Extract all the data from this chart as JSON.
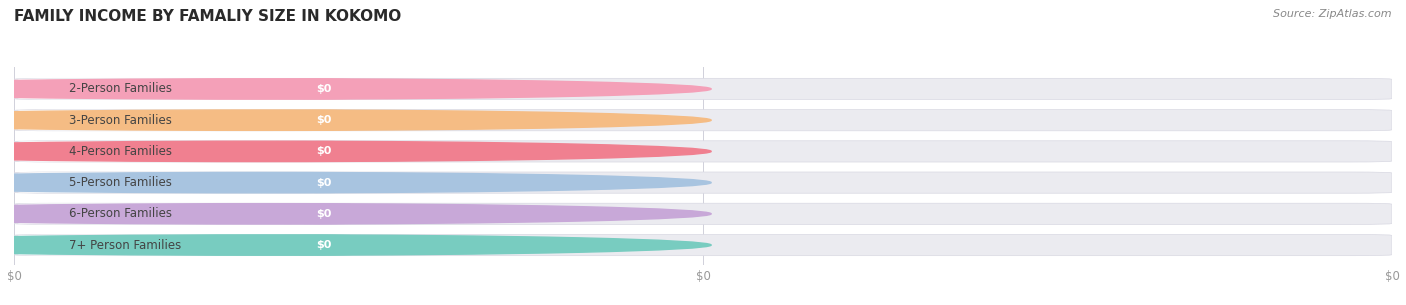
{
  "title": "FAMILY INCOME BY FAMALIY SIZE IN KOKOMO",
  "source": "Source: ZipAtlas.com",
  "categories": [
    "2-Person Families",
    "3-Person Families",
    "4-Person Families",
    "5-Person Families",
    "6-Person Families",
    "7+ Person Families"
  ],
  "values": [
    0,
    0,
    0,
    0,
    0,
    0
  ],
  "bar_colors": [
    "#f4a0b8",
    "#f5bc84",
    "#f08090",
    "#a8c4e0",
    "#c8a8d8",
    "#78ccc0"
  ],
  "bar_bg_color": "#ebebf0",
  "background_color": "#ffffff",
  "grid_color": "#d0d0da",
  "title_fontsize": 11,
  "label_fontsize": 8.5,
  "source_fontsize": 8,
  "value_label_color": "#ffffff",
  "category_label_color": "#444444",
  "tick_label_color": "#999999"
}
